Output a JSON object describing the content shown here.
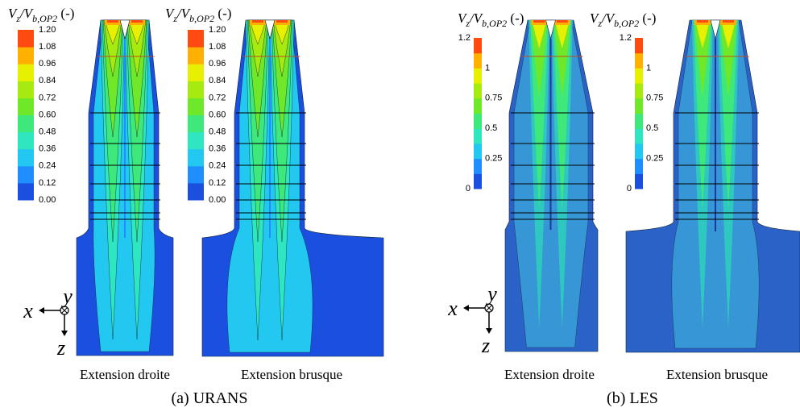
{
  "panels": [
    {
      "caption": "(a) URANS",
      "axes": {
        "x": "x",
        "y": "y",
        "z": "z"
      },
      "plots": [
        {
          "caption": "Extension droite",
          "colorbar": {
            "label": [
              "V",
              "z",
              "/V",
              "b,OP2",
              " (-)"
            ],
            "ticks": [
              "1.20",
              "1.08",
              "0.96",
              "0.84",
              "0.72",
              "0.60",
              "0.48",
              "0.36",
              "0.24",
              "0.12",
              "0.00"
            ]
          }
        },
        {
          "caption": "Extension brusque",
          "colorbar": {
            "label": [
              "V",
              "z",
              "/V",
              "b,OP2",
              " (-)"
            ],
            "ticks": [
              "1.20",
              "1.08",
              "0.96",
              "0.84",
              "0.72",
              "0.60",
              "0.48",
              "0.36",
              "0.24",
              "0.12",
              "0.00"
            ]
          }
        }
      ]
    },
    {
      "caption": "(b) LES",
      "axes": {
        "x": "x",
        "y": "y",
        "z": "z"
      },
      "plots": [
        {
          "caption": "Extension droite",
          "colorbar": {
            "label": [
              "V",
              "z",
              "/V",
              "b,OP2",
              " (-)"
            ],
            "ticks": [
              "1.2",
              "1",
              "0.75",
              "0.5",
              "0.25",
              "0"
            ]
          }
        },
        {
          "caption": "Extension brusque",
          "colorbar": {
            "label": [
              "V",
              "z",
              "/V",
              "b,OP2",
              " (-)"
            ],
            "ticks": [
              "1.2",
              "1",
              "0.75",
              "0.5",
              "0.25",
              "0"
            ]
          }
        }
      ]
    }
  ]
}
